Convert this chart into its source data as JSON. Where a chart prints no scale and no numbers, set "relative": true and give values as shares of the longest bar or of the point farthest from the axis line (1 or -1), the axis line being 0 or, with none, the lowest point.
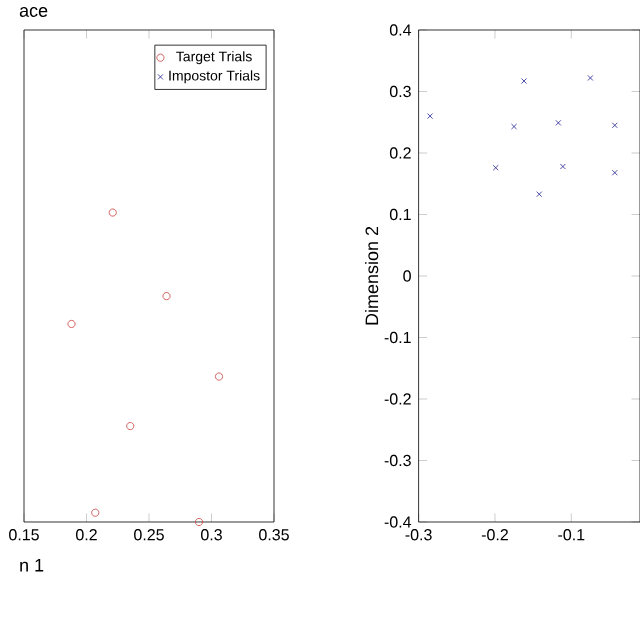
{
  "chart_data": [
    {
      "type": "scatter",
      "title": "ace",
      "xlabel": "n 1",
      "relative": true,
      "legend": "top right",
      "xlim": [
        0.15,
        0.35
      ],
      "xticks": [
        0.15,
        0.2,
        0.25,
        0.3,
        0.35
      ],
      "series": [
        {
          "name": "Target Trials",
          "color": "#c8403c",
          "marker": "circle",
          "x": [
            0.221,
            0.264,
            0.188,
            0.306,
            0.235,
            0.207,
            0.29
          ],
          "values": [
            1,
            0.73,
            0.64,
            0.47,
            0.31,
            0.03,
            0
          ]
        },
        {
          "name": "Impostor Trials",
          "color": "#1f1f8f",
          "marker": "cross"
        }
      ]
    },
    {
      "type": "scatter",
      "ylabel": "Dimension 2",
      "xlim": [
        -0.3,
        -0.01
      ],
      "ylim": [
        -0.4,
        0.4
      ],
      "xticks": [
        -0.3,
        -0.2,
        -0.1
      ],
      "yticks": [
        -0.4,
        -0.3,
        -0.2,
        -0.1,
        0,
        0.1,
        0.2,
        0.3,
        0.4
      ],
      "series": [
        {
          "color": "#1f1f8f",
          "marker": "cross",
          "x": [
            -0.285,
            -0.162,
            -0.075,
            -0.175,
            -0.117,
            -0.043,
            -0.199,
            -0.111,
            -0.043,
            -0.142
          ],
          "values": [
            0.26,
            0.317,
            0.322,
            0.243,
            0.249,
            0.245,
            0.176,
            0.178,
            0.168,
            0.133
          ]
        }
      ]
    }
  ]
}
